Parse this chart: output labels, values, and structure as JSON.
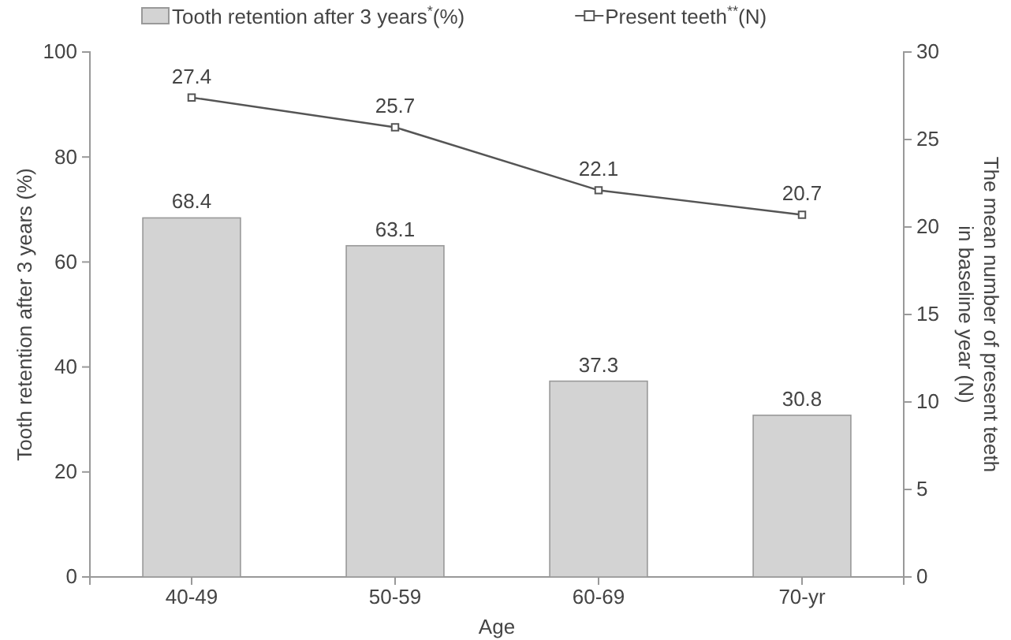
{
  "chart_data": {
    "type": "bar",
    "categories": [
      "40-49",
      "50-59",
      "60-69",
      "70-yr"
    ],
    "xlabel": "Age",
    "ylabel": "Tooth retention after 3 years (%)",
    "y2label": "The mean number of present teeth\nin baseline year (N)",
    "series": [
      {
        "name": "Tooth retention after 3 years$^{*}$(%)",
        "color": "#d3d3d3",
        "values": [
          68.4,
          63.1,
          37.3,
          30.8
        ]
      },
      {
        "name": "Present teeth$^{**}$(N)",
        "type": "line",
        "axis": "y2",
        "color": "#555555",
        "marker": "square",
        "values": [
          27.4,
          25.7,
          22.1,
          20.7
        ]
      }
    ],
    "ylim": [
      0,
      100
    ],
    "yticks": [
      0,
      20,
      40,
      60,
      80,
      100
    ],
    "y2lim": [
      0,
      30
    ],
    "y2ticks": [
      0,
      5,
      10,
      15,
      20,
      25,
      30
    ],
    "data_labels": true,
    "legend": "top",
    "grid": false
  }
}
